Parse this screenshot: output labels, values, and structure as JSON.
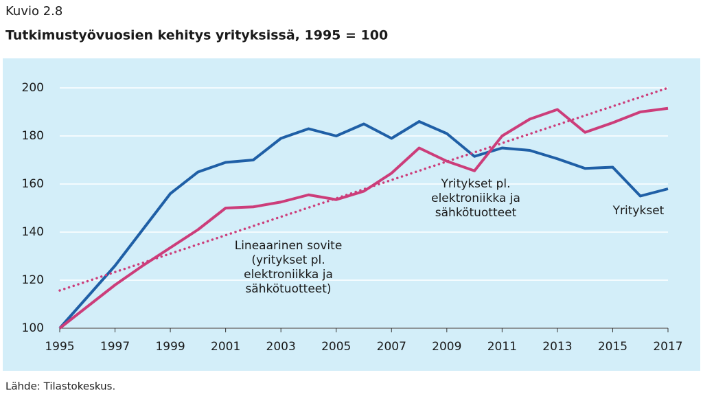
{
  "chart_data": {
    "type": "line",
    "figure_label": "Kuvio 2.8",
    "title": "Tutkimustyövuosien kehitys yrityksissä, 1995 = 100",
    "source": "Lähde: Tilastokeskus.",
    "x": [
      1995,
      1996,
      1997,
      1998,
      1999,
      2000,
      2001,
      2002,
      2003,
      2004,
      2005,
      2006,
      2007,
      2008,
      2009,
      2010,
      2011,
      2012,
      2013,
      2014,
      2015,
      2016,
      2017
    ],
    "xlim": [
      1995,
      2017
    ],
    "xticks": [
      1995,
      1997,
      1999,
      2001,
      2003,
      2005,
      2007,
      2009,
      2011,
      2013,
      2015,
      2017
    ],
    "ylim": [
      100,
      200
    ],
    "yticks": [
      100,
      120,
      140,
      160,
      180,
      200
    ],
    "grid": true,
    "series": [
      {
        "color": "#1f5fa6",
        "values": [
          100,
          113,
          126,
          141,
          156,
          165,
          169,
          170,
          179,
          183,
          180,
          185,
          179,
          186,
          181,
          171.5,
          175,
          174,
          170.5,
          166.5,
          167,
          155,
          158
        ]
      },
      {
        "color": "#cc3d7a",
        "values": [
          100,
          109,
          118,
          126,
          133.5,
          141,
          150,
          150.5,
          152.5,
          155.5,
          153.5,
          157,
          164.5,
          175,
          169.5,
          165.5,
          180,
          187,
          191,
          181.5,
          185.5,
          190,
          191.5
        ]
      },
      {
        "color": "#cc3d7a",
        "dotted": true,
        "x": [
          1995,
          2017
        ],
        "values": [
          115.7,
          200
        ]
      }
    ],
    "annotations": [
      {
        "lines": [
          "Lineaarinen sovite",
          "(yritykset pl.",
          "elektroniikka ja",
          "sähkötuotteet)"
        ]
      },
      {
        "lines": [
          "Yritykset pl.",
          "elektroniikka ja",
          "sähkötuotteet"
        ]
      },
      {
        "lines": [
          "Yritykset"
        ]
      }
    ]
  }
}
